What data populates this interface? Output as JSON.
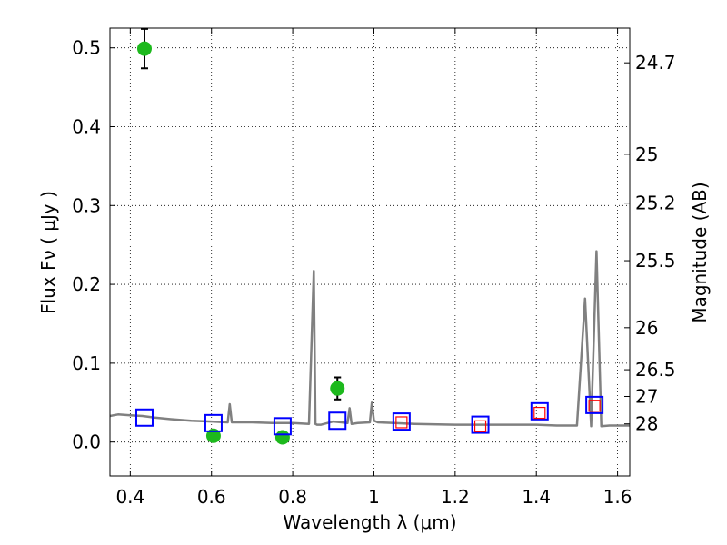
{
  "chart_data": {
    "type": "scatter",
    "title": "",
    "xlabel": "Wavelength  λ (μm)",
    "ylabel": "Flux  Fν  ( μJy )",
    "y2label": "Magnitude (AB)",
    "xlim": [
      0.35,
      1.63
    ],
    "ylim": [
      -0.043,
      0.525
    ],
    "grid": true,
    "x_ticks": [
      0.4,
      0.6,
      0.8,
      1.0,
      1.2,
      1.4,
      1.6
    ],
    "x_tick_labels": [
      "0.4",
      "0.6",
      "0.8",
      "1",
      "1.2",
      "1.4",
      "1.6"
    ],
    "y_ticks": [
      0.0,
      0.1,
      0.2,
      0.3,
      0.4,
      0.5
    ],
    "y_tick_labels": [
      "0.0",
      "0.1",
      "0.2",
      "0.3",
      "0.4",
      "0.5"
    ],
    "y2_ticks": [
      {
        "label": "24.7",
        "flux": 0.481
      },
      {
        "label": "25",
        "flux": 0.365
      },
      {
        "label": "25.2",
        "flux": 0.303
      },
      {
        "label": "25.5",
        "flux": 0.23
      },
      {
        "label": "26",
        "flux": 0.145
      },
      {
        "label": "26.5",
        "flux": 0.0917
      },
      {
        "label": "27",
        "flux": 0.0578
      },
      {
        "label": "28",
        "flux": 0.023
      }
    ],
    "series": [
      {
        "kind": "model",
        "color": "#808080",
        "x": [
          0.35,
          0.37,
          0.4,
          0.43,
          0.46,
          0.5,
          0.55,
          0.6,
          0.64,
          0.645,
          0.65,
          0.7,
          0.75,
          0.8,
          0.84,
          0.852,
          0.856,
          0.86,
          0.87,
          0.9,
          0.92,
          0.935,
          0.94,
          0.945,
          0.96,
          0.99,
          0.995,
          1.0,
          1.01,
          1.05,
          1.1,
          1.2,
          1.3,
          1.4,
          1.45,
          1.5,
          1.52,
          1.535,
          1.548,
          1.56,
          1.58,
          1.63
        ],
        "y": [
          0.033,
          0.035,
          0.034,
          0.033,
          0.031,
          0.029,
          0.027,
          0.026,
          0.025,
          0.048,
          0.025,
          0.025,
          0.024,
          0.024,
          0.023,
          0.217,
          0.023,
          0.022,
          0.022,
          0.026,
          0.025,
          0.024,
          0.043,
          0.023,
          0.024,
          0.025,
          0.05,
          0.027,
          0.025,
          0.024,
          0.023,
          0.022,
          0.022,
          0.022,
          0.021,
          0.021,
          0.182,
          0.02,
          0.242,
          0.02,
          0.021,
          0.021
        ]
      },
      {
        "kind": "observed",
        "color": "#1db91d",
        "errorbar_color": "#000000",
        "x": [
          0.435,
          0.605,
          0.775,
          0.91
        ],
        "y": [
          0.499,
          0.008,
          0.006,
          0.068
        ],
        "err": [
          0.025,
          0.005,
          0.004,
          0.014
        ]
      },
      {
        "kind": "model-bandpass",
        "color": "#0000ff",
        "x": [
          0.435,
          0.605,
          0.775,
          0.91,
          1.068,
          1.262,
          1.408,
          1.543
        ],
        "y": [
          0.031,
          0.024,
          0.02,
          0.027,
          0.026,
          0.022,
          0.039,
          0.047
        ]
      },
      {
        "kind": "model-bandpass-inner",
        "color": "#ff0000",
        "x": [
          1.068,
          1.262,
          1.408,
          1.543
        ],
        "y": [
          0.025,
          0.02,
          0.037,
          0.046
        ]
      }
    ]
  }
}
